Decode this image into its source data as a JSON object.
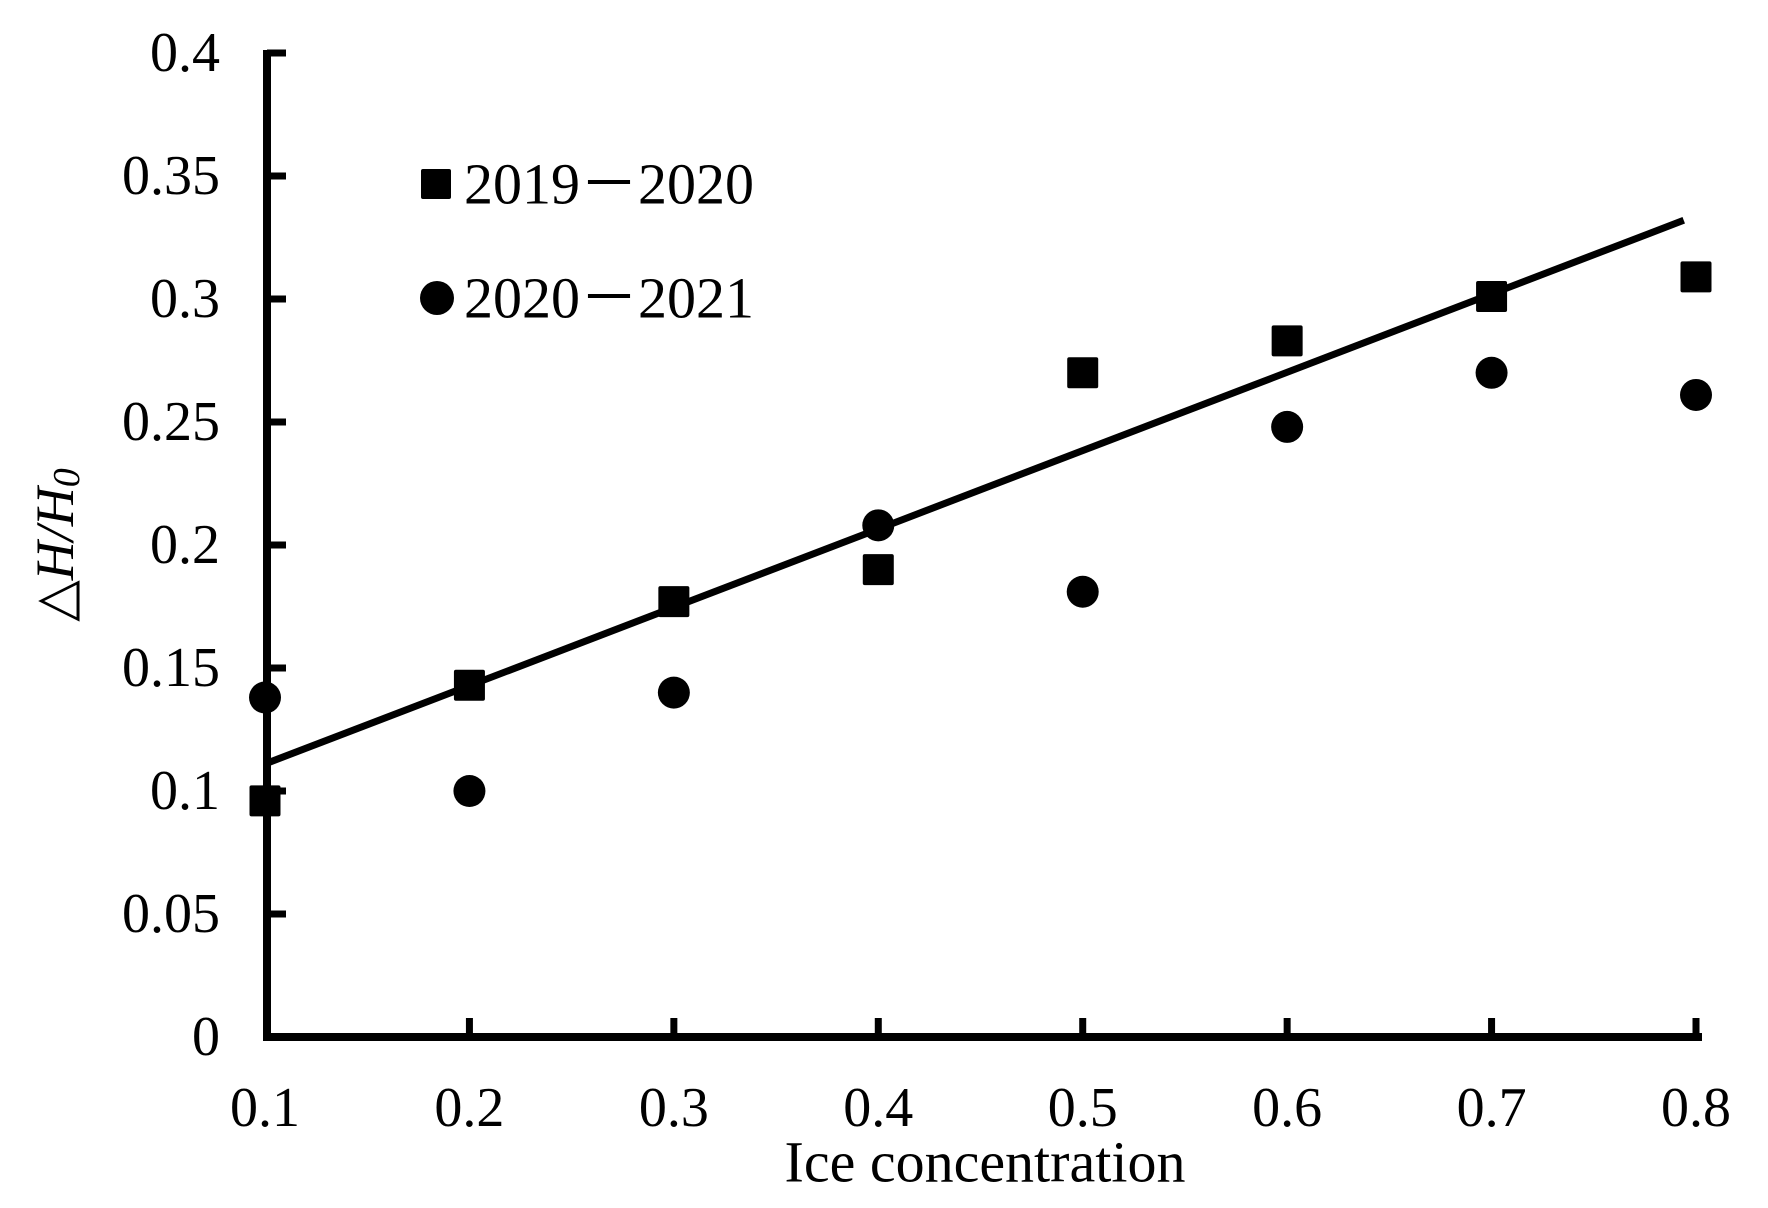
{
  "chart_data": {
    "type": "scatter",
    "title": "",
    "xlabel": "Ice concentration",
    "ylabel": "△H/H₀",
    "ylabel_parts": {
      "delta": "△",
      "main": "H/H",
      "sub": "0"
    },
    "xlim": [
      0.1,
      0.8
    ],
    "ylim": [
      0,
      0.4
    ],
    "grid": false,
    "legend_position": "upper-left-inside",
    "x_ticks": [
      "0.1",
      "0.2",
      "0.3",
      "0.4",
      "0.5",
      "0.6",
      "0.7",
      "0.8"
    ],
    "y_ticks": [
      "0",
      "0.05",
      "0.1",
      "0.15",
      "0.2",
      "0.25",
      "0.3",
      "0.35",
      "0.4"
    ],
    "x": [
      0.1,
      0.2,
      0.3,
      0.4,
      0.5,
      0.6,
      0.7,
      0.8
    ],
    "series": [
      {
        "name": "2019－2020",
        "marker": "square",
        "values": [
          0.096,
          0.143,
          0.177,
          0.19,
          0.27,
          0.283,
          0.301,
          0.309
        ]
      },
      {
        "name": "2020－2021",
        "marker": "circle",
        "values": [
          0.138,
          0.1,
          0.14,
          0.208,
          0.181,
          0.248,
          0.27,
          0.261
        ]
      }
    ],
    "trendline": {
      "x_start": 0.1,
      "y_start": 0.111,
      "x_end": 0.794,
      "y_end": 0.332
    },
    "colors": {
      "foreground": "#000000",
      "background": "#ffffff"
    }
  }
}
